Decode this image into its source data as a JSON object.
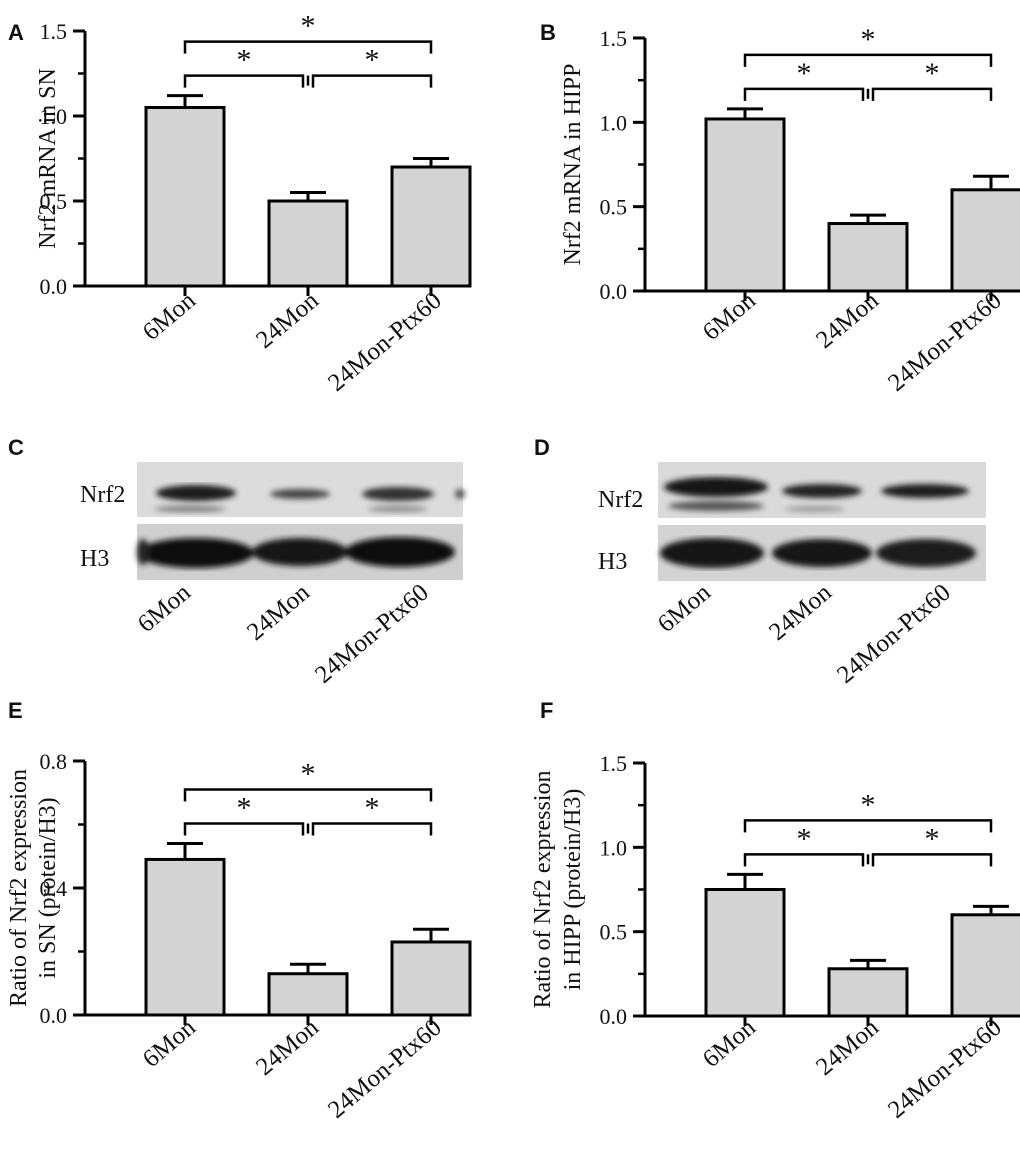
{
  "chart_data": [
    {
      "panel": "A",
      "type": "bar",
      "categories": [
        "6Mon",
        "24Mon",
        "24Mon-Ptx60"
      ],
      "values": [
        1.05,
        0.5,
        0.7
      ],
      "errors": [
        0.07,
        0.05,
        0.05
      ],
      "ylabel": "Nrf2 mRNA in SN",
      "yticks": [
        "0.0",
        "0.5",
        "1.0",
        "1.5"
      ],
      "ylim": [
        0,
        1.5
      ],
      "significance": [
        "*",
        "*",
        "*"
      ]
    },
    {
      "panel": "B",
      "type": "bar",
      "categories": [
        "6Mon",
        "24Mon",
        "24Mon-Ptx60"
      ],
      "values": [
        1.02,
        0.4,
        0.6
      ],
      "errors": [
        0.06,
        0.05,
        0.08
      ],
      "ylabel": "Nrf2 mRNA in HIPP",
      "yticks": [
        "0.0",
        "0.5",
        "1.0",
        "1.5"
      ],
      "ylim": [
        0,
        1.5
      ],
      "significance": [
        "*",
        "*",
        "*"
      ]
    },
    {
      "panel": "E",
      "type": "bar",
      "categories": [
        "6Mon",
        "24Mon",
        "24Mon-Ptx60"
      ],
      "values": [
        0.49,
        0.13,
        0.23
      ],
      "errors": [
        0.05,
        0.03,
        0.04
      ],
      "ylabel": "Ratio of Nrf2 expression",
      "ylabel2": "in SN (protein/H3)",
      "yticks": [
        "0.0",
        "0.4",
        "0.8"
      ],
      "ylim": [
        0,
        0.8
      ],
      "significance": [
        "*",
        "*",
        "*"
      ]
    },
    {
      "panel": "F",
      "type": "bar",
      "categories": [
        "6Mon",
        "24Mon",
        "24Mon-Ptx60"
      ],
      "values": [
        0.75,
        0.28,
        0.6
      ],
      "errors": [
        0.09,
        0.05,
        0.05
      ],
      "ylabel": "Ratio of Nrf2 expression",
      "ylabel2": "in HIPP (protein/H3)",
      "yticks": [
        "0.0",
        "0.5",
        "1.0",
        "1.5"
      ],
      "ylim": [
        0,
        1.5
      ],
      "significance": [
        "*",
        "*",
        "*"
      ]
    }
  ],
  "blots": [
    {
      "panel": "C",
      "rows": [
        "Nrf2",
        "H3"
      ],
      "lanes": [
        "6Mon",
        "24Mon",
        "24Mon-Ptx60"
      ]
    },
    {
      "panel": "D",
      "rows": [
        "Nrf2",
        "H3"
      ],
      "lanes": [
        "6Mon",
        "24Mon",
        "24Mon-Ptx60"
      ]
    }
  ],
  "colors": {
    "bar_fill": "#d3d3d3",
    "stroke": "#000000"
  }
}
